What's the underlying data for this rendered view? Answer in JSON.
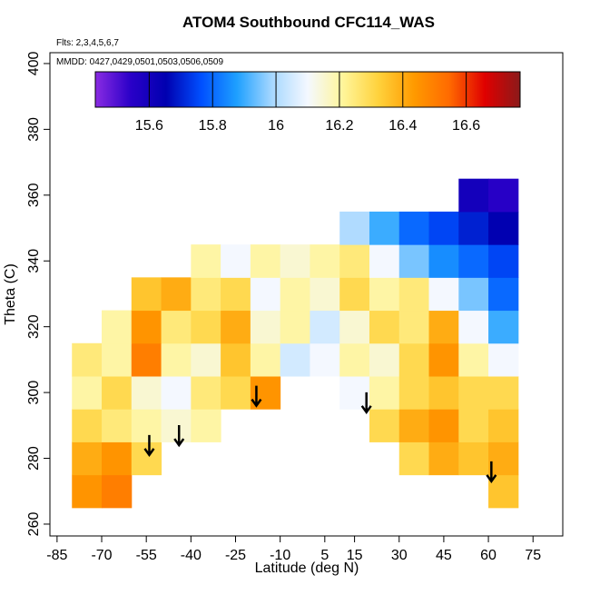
{
  "chart_data": {
    "type": "heatmap",
    "title": "ATOM4 Southbound CFC114_WAS",
    "subtitle": "Flts: 2,3,4,5,6,7",
    "annotation": "MMDD: 0427,0429,0501,0503,0506,0509",
    "x_label": "Latitude (deg N)",
    "y_label": "Theta (C)",
    "xlim": [
      -87.4,
      85
    ],
    "ylim": [
      256.4,
      403.3
    ],
    "xticks": [
      -85,
      -70,
      -55,
      -40,
      -25,
      -10,
      5,
      15,
      30,
      45,
      60,
      75
    ],
    "yticks": [
      260,
      280,
      300,
      320,
      340,
      360,
      380,
      400
    ],
    "x_edges": [
      -80,
      -70,
      -60,
      -50,
      -40,
      -30,
      -20,
      -10,
      0,
      10,
      20,
      30,
      40,
      50,
      60,
      70
    ],
    "y_edges": [
      265,
      275,
      285,
      295,
      305,
      315,
      325,
      335,
      345,
      355,
      365
    ],
    "values": [
      [
        16.45,
        16.5,
        null,
        null,
        null,
        null,
        null,
        null,
        null,
        null,
        null,
        null,
        null,
        null,
        16.35
      ],
      [
        16.4,
        16.45,
        16.3,
        null,
        null,
        null,
        null,
        null,
        null,
        null,
        null,
        16.3,
        16.4,
        16.35,
        16.4
      ],
      [
        16.3,
        16.25,
        16.2,
        16.15,
        16.2,
        null,
        null,
        null,
        null,
        null,
        16.3,
        16.4,
        16.45,
        16.3,
        16.35
      ],
      [
        16.2,
        16.3,
        16.15,
        16.1,
        16.25,
        16.3,
        16.45,
        null,
        null,
        16.1,
        16.2,
        16.3,
        16.35,
        16.3,
        16.3
      ],
      [
        16.25,
        16.2,
        16.5,
        16.2,
        16.15,
        16.35,
        16.2,
        16.05,
        16.1,
        16.2,
        16.15,
        16.3,
        16.45,
        16.2,
        16.1
      ],
      [
        null,
        16.2,
        16.45,
        16.25,
        16.3,
        16.4,
        16.15,
        16.2,
        16.05,
        16.15,
        16.3,
        16.25,
        16.4,
        16.1,
        15.9
      ],
      [
        null,
        null,
        16.35,
        16.4,
        16.25,
        16.3,
        16.1,
        16.2,
        16.15,
        16.3,
        16.2,
        16.25,
        16.1,
        15.95,
        15.8
      ],
      [
        null,
        null,
        null,
        null,
        16.2,
        16.1,
        16.2,
        16.15,
        16.2,
        16.25,
        16.1,
        15.95,
        15.85,
        15.8,
        15.75
      ],
      [
        null,
        null,
        null,
        null,
        null,
        null,
        null,
        null,
        null,
        16.0,
        15.9,
        15.8,
        15.75,
        15.7,
        15.65
      ],
      [
        null,
        null,
        null,
        null,
        null,
        null,
        null,
        null,
        null,
        null,
        null,
        null,
        null,
        15.6,
        15.55
      ]
    ],
    "colorbar": {
      "lim": [
        15.43,
        16.77
      ],
      "ticks": [
        15.6,
        15.8,
        16.0,
        16.2,
        16.4,
        16.6
      ],
      "colors": [
        "#8a2be2",
        "#2a00c8",
        "#0000b0",
        "#0050ff",
        "#1ea0ff",
        "#a8d8ff",
        "#f4f8ff",
        "#fff59a",
        "#ffd23c",
        "#ff9a00",
        "#ff6a00",
        "#e00000",
        "#8b1a1a"
      ]
    },
    "arrows": {
      "x": [
        -54,
        -44,
        -18,
        19,
        61
      ],
      "y": [
        281,
        284,
        296,
        294,
        273
      ],
      "color": "#000000"
    }
  }
}
